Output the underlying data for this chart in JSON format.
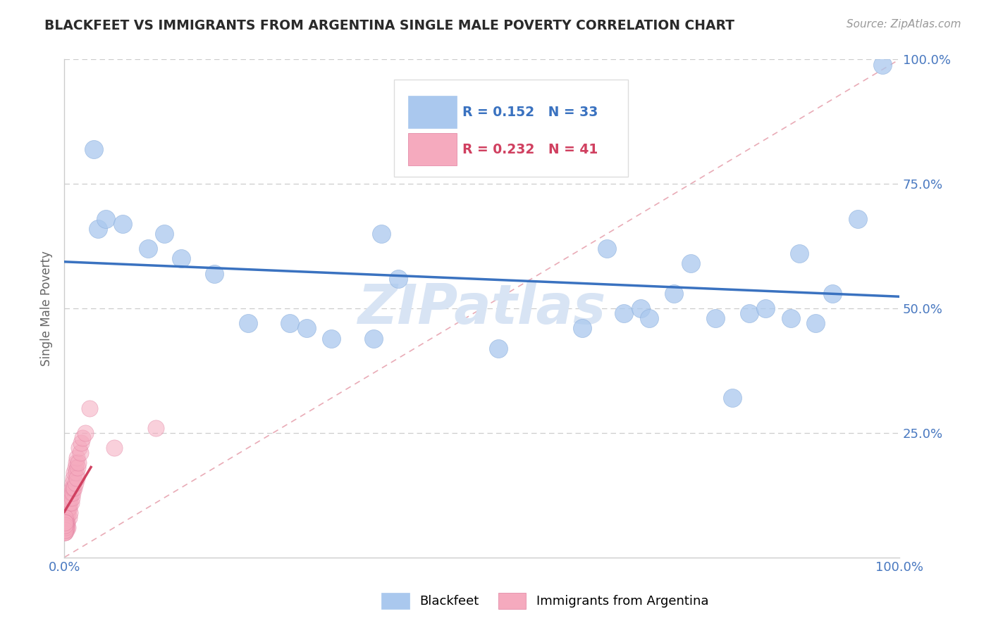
{
  "title": "BLACKFEET VS IMMIGRANTS FROM ARGENTINA SINGLE MALE POVERTY CORRELATION CHART",
  "source": "Source: ZipAtlas.com",
  "ylabel": "Single Male Poverty",
  "xlim": [
    0,
    1
  ],
  "ylim": [
    0,
    1
  ],
  "legend_r_blue": "R = 0.152",
  "legend_n_blue": "N = 33",
  "legend_r_pink": "R = 0.232",
  "legend_n_pink": "N = 41",
  "blue_scatter_color": "#aac8ee",
  "pink_scatter_color": "#f5aabe",
  "blue_line_color": "#3a72c0",
  "pink_line_color": "#d04060",
  "diag_line_color": "#e08898",
  "grid_color": "#c8c8c8",
  "title_color": "#2a2a2a",
  "axis_tick_color": "#4878c0",
  "ylabel_color": "#666666",
  "source_color": "#999999",
  "watermark_color": "#d8e4f4",
  "watermark": "ZIPatlas",
  "blackfeet_x": [
    0.035,
    0.04,
    0.05,
    0.07,
    0.1,
    0.12,
    0.14,
    0.18,
    0.22,
    0.27,
    0.29,
    0.32,
    0.37,
    0.38,
    0.4,
    0.52,
    0.62,
    0.65,
    0.67,
    0.69,
    0.7,
    0.73,
    0.75,
    0.78,
    0.8,
    0.82,
    0.84,
    0.87,
    0.88,
    0.9,
    0.92,
    0.95,
    0.98
  ],
  "blackfeet_y": [
    0.82,
    0.66,
    0.68,
    0.67,
    0.62,
    0.65,
    0.6,
    0.57,
    0.47,
    0.47,
    0.46,
    0.44,
    0.44,
    0.65,
    0.56,
    0.42,
    0.46,
    0.62,
    0.49,
    0.5,
    0.48,
    0.53,
    0.59,
    0.48,
    0.32,
    0.49,
    0.5,
    0.48,
    0.61,
    0.47,
    0.53,
    0.68,
    0.99
  ],
  "argentina_x": [
    0.001,
    0.001,
    0.002,
    0.002,
    0.003,
    0.003,
    0.004,
    0.004,
    0.005,
    0.005,
    0.006,
    0.006,
    0.007,
    0.007,
    0.007,
    0.008,
    0.008,
    0.009,
    0.009,
    0.01,
    0.01,
    0.011,
    0.011,
    0.012,
    0.012,
    0.013,
    0.013,
    0.014,
    0.014,
    0.015,
    0.015,
    0.016,
    0.017,
    0.018,
    0.019,
    0.02,
    0.022,
    0.025,
    0.03,
    0.06,
    0.11
  ],
  "argentina_y": [
    0.06,
    0.07,
    0.07,
    0.08,
    0.07,
    0.08,
    0.06,
    0.09,
    0.1,
    0.11,
    0.08,
    0.1,
    0.09,
    0.11,
    0.12,
    0.11,
    0.13,
    0.12,
    0.14,
    0.13,
    0.15,
    0.14,
    0.16,
    0.14,
    0.17,
    0.15,
    0.18,
    0.17,
    0.19,
    0.16,
    0.2,
    0.18,
    0.19,
    0.22,
    0.21,
    0.23,
    0.24,
    0.25,
    0.3,
    0.22,
    0.26
  ],
  "argentina_cluster_x": [
    0.001,
    0.001,
    0.001,
    0.001,
    0.001,
    0.002,
    0.002,
    0.002,
    0.002,
    0.002,
    0.001,
    0.001,
    0.001,
    0.001,
    0.001,
    0.001,
    0.001,
    0.001,
    0.001,
    0.001
  ],
  "argentina_cluster_y": [
    0.05,
    0.055,
    0.06,
    0.065,
    0.05,
    0.06,
    0.065,
    0.07,
    0.055,
    0.06,
    0.07,
    0.075,
    0.065,
    0.08,
    0.05,
    0.07,
    0.06,
    0.055,
    0.065,
    0.07
  ]
}
